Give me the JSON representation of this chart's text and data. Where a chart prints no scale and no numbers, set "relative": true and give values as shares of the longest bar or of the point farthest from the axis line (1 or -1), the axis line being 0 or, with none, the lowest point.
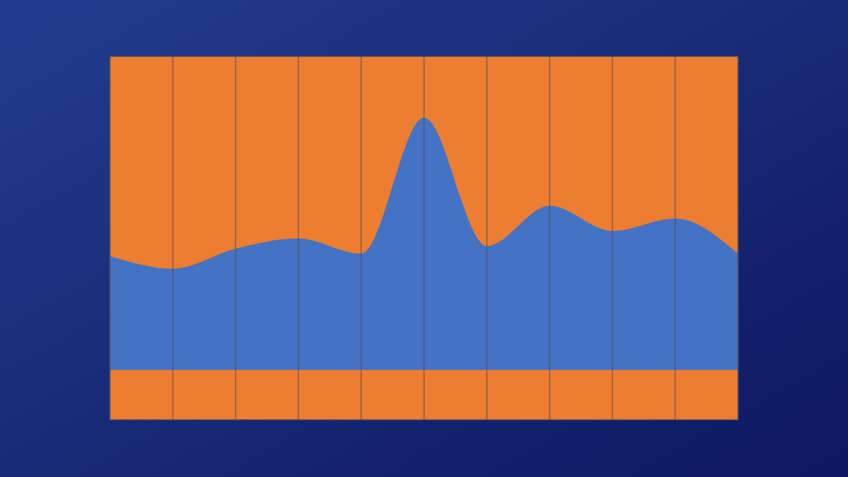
{
  "chart_data": {
    "type": "area",
    "relative": true,
    "categories": [
      null,
      null,
      null,
      null,
      null,
      null,
      null,
      null,
      null,
      null,
      null
    ],
    "series": [
      {
        "color": "#4472c4",
        "values": [
          0.45,
          0.4,
          0.48,
          0.52,
          0.46,
          1,
          0.49,
          0.65,
          0.55,
          0.6,
          0.46
        ]
      }
    ],
    "grid": "x"
  }
}
